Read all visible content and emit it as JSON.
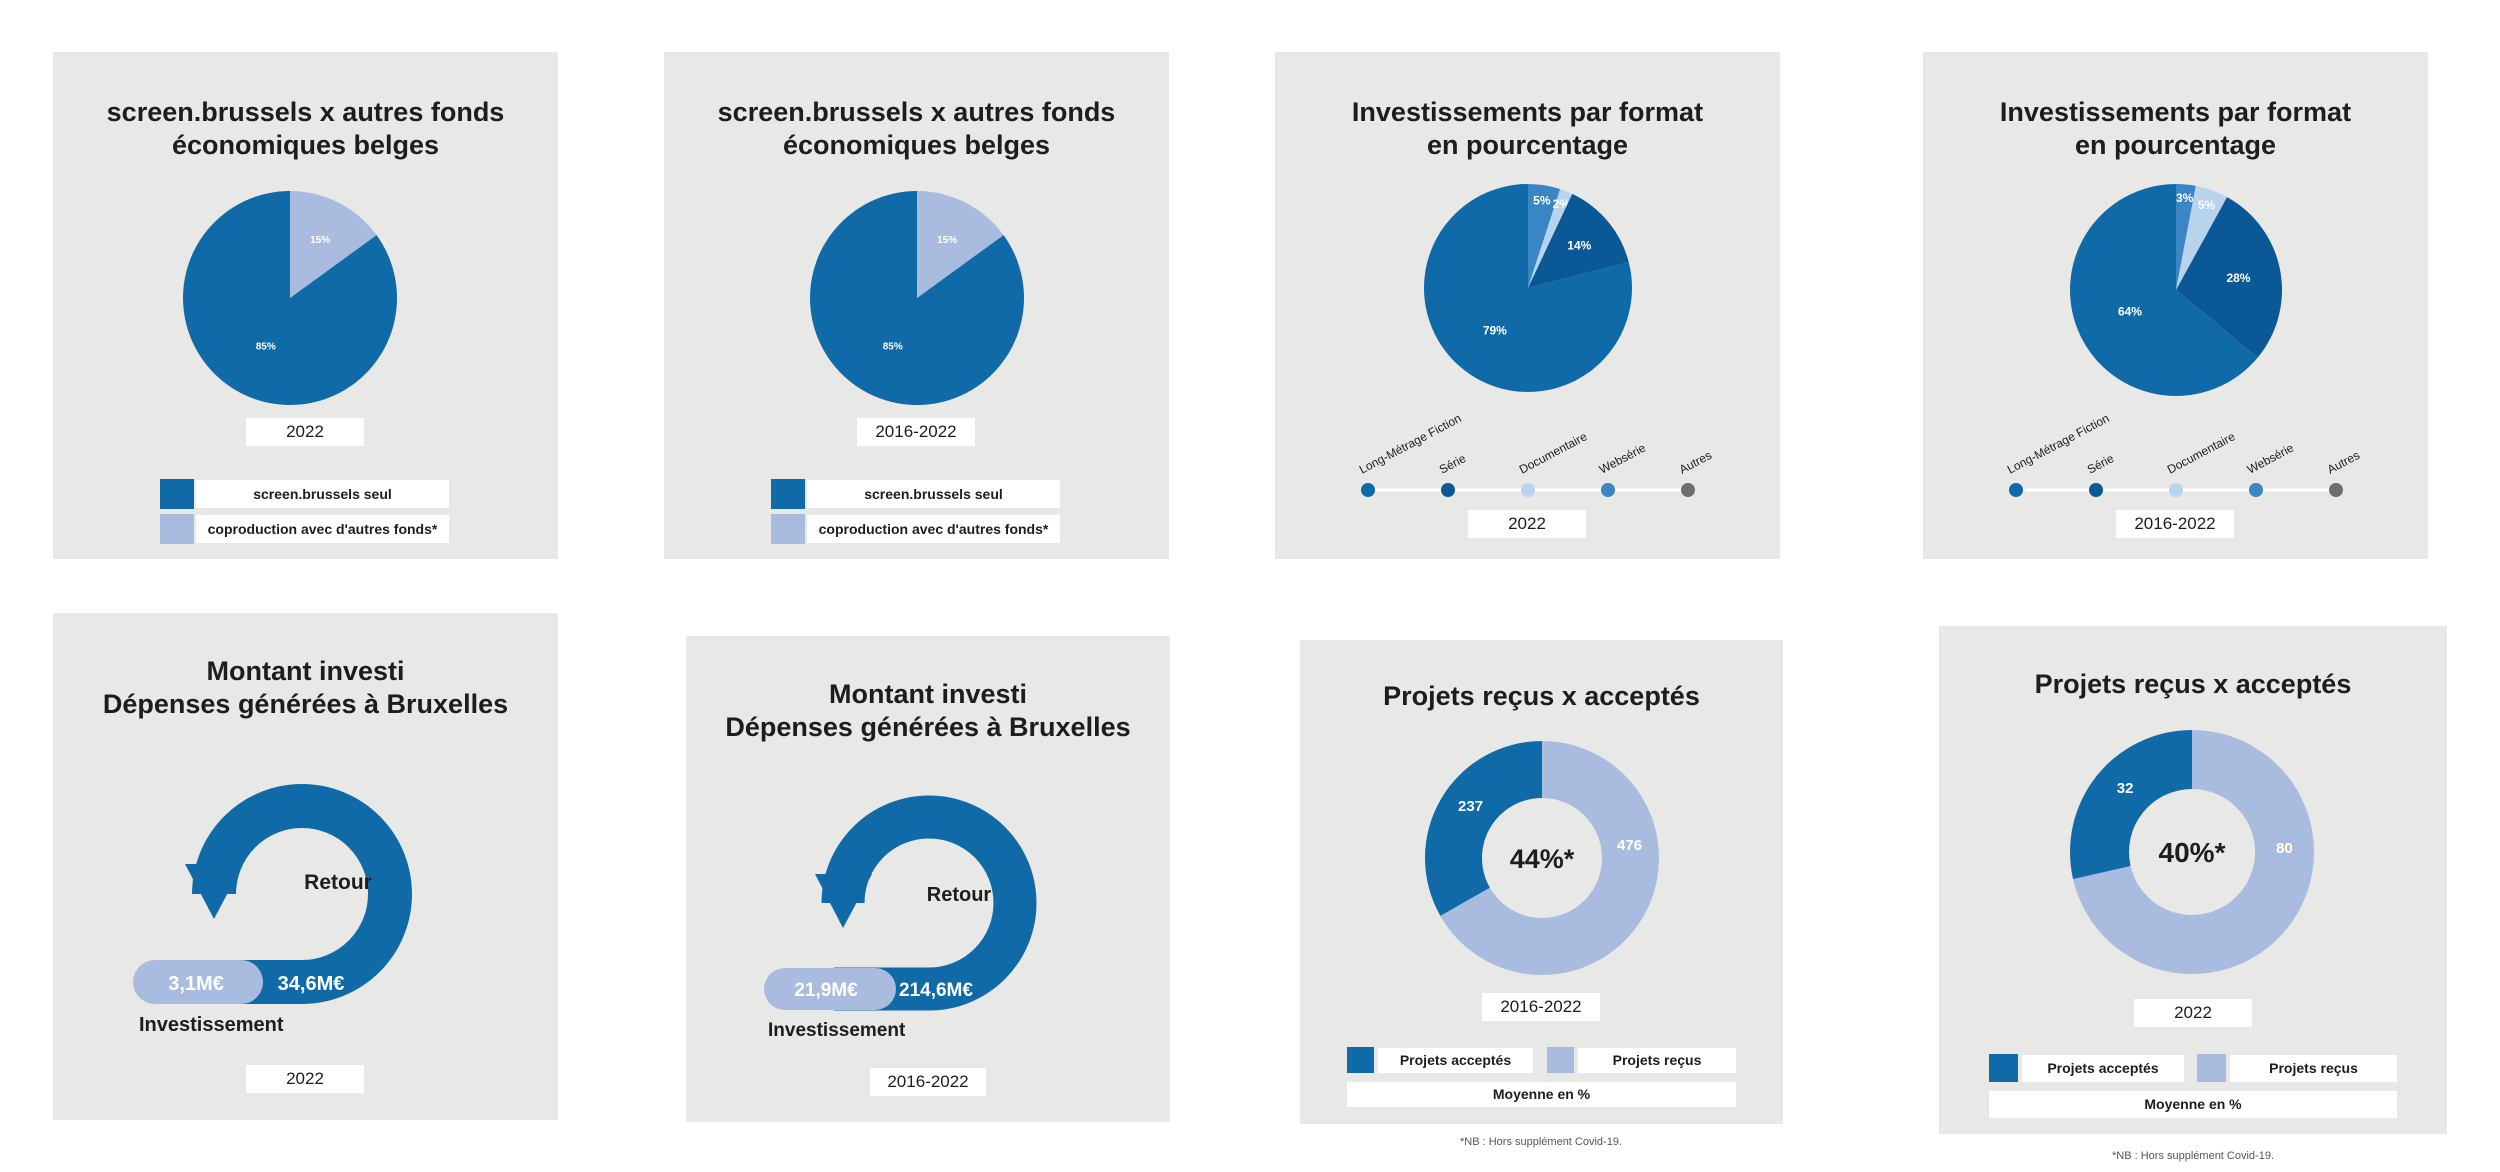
{
  "colors": {
    "dark_blue": "#106aa8",
    "deep_blue": "#0b5896",
    "mid_blue": "#3a86c4",
    "light_blue": "#a9bcdf",
    "pale_blue": "#b7d4ec",
    "grey_dot": "#6f6f6f",
    "panel_bg": "#e8e8e6"
  },
  "panels": [
    {
      "title": "screen.brussels x autres fonds\néconomiques belges",
      "period": "2022",
      "legend": [
        "screen.brussels seul",
        "coproduction avec d'autres fonds*"
      ]
    },
    {
      "title": "screen.brussels x autres fonds\néconomiques belges",
      "period": "2016-2022",
      "legend": [
        "screen.brussels seul",
        "coproduction avec d'autres fonds*"
      ]
    },
    {
      "title": "Investissements par format\nen pourcentage",
      "period": "2022",
      "legend": [
        "Long-Métrage Fiction",
        "Série",
        "Documentaire",
        "Websérie",
        "Autres"
      ]
    },
    {
      "title": "Investissements par format\nen pourcentage",
      "period": "2016-2022",
      "legend": [
        "Long-Métrage Fiction",
        "Série",
        "Documentaire",
        "Websérie",
        "Autres"
      ]
    },
    {
      "title": "Montant investi\nDépenses générées à Bruxelles",
      "period": "2022",
      "invested": "3,1M€",
      "generated": "34,6M€",
      "return_label": "Retour",
      "investment_label": "Investissement"
    },
    {
      "title": "Montant investi\nDépenses générées à Bruxelles",
      "period": "2016-2022",
      "invested": "21,9M€",
      "generated": "214,6M€",
      "return_label": "Retour",
      "investment_label": "Investissement"
    },
    {
      "title": "Projets reçus x acceptés",
      "period": "2016-2022",
      "legend": [
        "Projets acceptés",
        "Projets reçus"
      ],
      "average_label": "Moyenne en %",
      "footnote": "*NB : Hors supplément Covid-19."
    },
    {
      "title": "Projets reçus x acceptés",
      "period": "2022",
      "legend": [
        "Projets acceptés",
        "Projets reçus"
      ],
      "average_label": "Moyenne en %",
      "footnote": "*NB : Hors supplément Covid-19."
    }
  ],
  "chart_data": [
    {
      "type": "pie",
      "title": "screen.brussels x autres fonds économiques belges",
      "period": "2022",
      "categories": [
        "screen.brussels seul",
        "coproduction avec d'autres fonds*"
      ],
      "values": [
        85,
        15
      ],
      "labels": [
        "85%",
        "15%"
      ]
    },
    {
      "type": "pie",
      "title": "screen.brussels x autres fonds économiques belges",
      "period": "2016-2022",
      "categories": [
        "screen.brussels seul",
        "coproduction avec d'autres fonds*"
      ],
      "values": [
        85,
        15
      ],
      "labels": [
        "85%",
        "15%"
      ]
    },
    {
      "type": "pie",
      "title": "Investissements par format en pourcentage",
      "period": "2022",
      "categories": [
        "Long-Métrage Fiction",
        "Série",
        "Documentaire",
        "Websérie"
      ],
      "values": [
        79,
        14,
        2,
        5
      ],
      "labels": [
        "79%",
        "14%",
        "2%",
        "5%"
      ]
    },
    {
      "type": "pie",
      "title": "Investissements par format en pourcentage",
      "period": "2016-2022",
      "categories": [
        "Long-Métrage Fiction",
        "Série",
        "Documentaire",
        "Websérie"
      ],
      "values": [
        64,
        28,
        5,
        3
      ],
      "labels": [
        "64%",
        "28%",
        "5%",
        "3%"
      ]
    },
    {
      "type": "other",
      "title": "Montant investi Dépenses générées à Bruxelles",
      "period": "2022",
      "categories": [
        "Investissement",
        "Retour"
      ],
      "values": [
        3.1,
        34.6
      ],
      "unit": "M€"
    },
    {
      "type": "other",
      "title": "Montant investi Dépenses générées à Bruxelles",
      "period": "2016-2022",
      "categories": [
        "Investissement",
        "Retour"
      ],
      "values": [
        21.9,
        214.6
      ],
      "unit": "M€"
    },
    {
      "type": "donut",
      "title": "Projets reçus x acceptés",
      "period": "2016-2022",
      "categories": [
        "Projets acceptés",
        "Projets reçus"
      ],
      "values": [
        237,
        476
      ],
      "labels": [
        "237",
        "476"
      ],
      "center_label": "44%*"
    },
    {
      "type": "donut",
      "title": "Projets reçus x acceptés",
      "period": "2022",
      "categories": [
        "Projets acceptés",
        "Projets reçus"
      ],
      "values": [
        32,
        80
      ],
      "labels": [
        "32",
        "80"
      ],
      "center_label": "40%*"
    }
  ]
}
